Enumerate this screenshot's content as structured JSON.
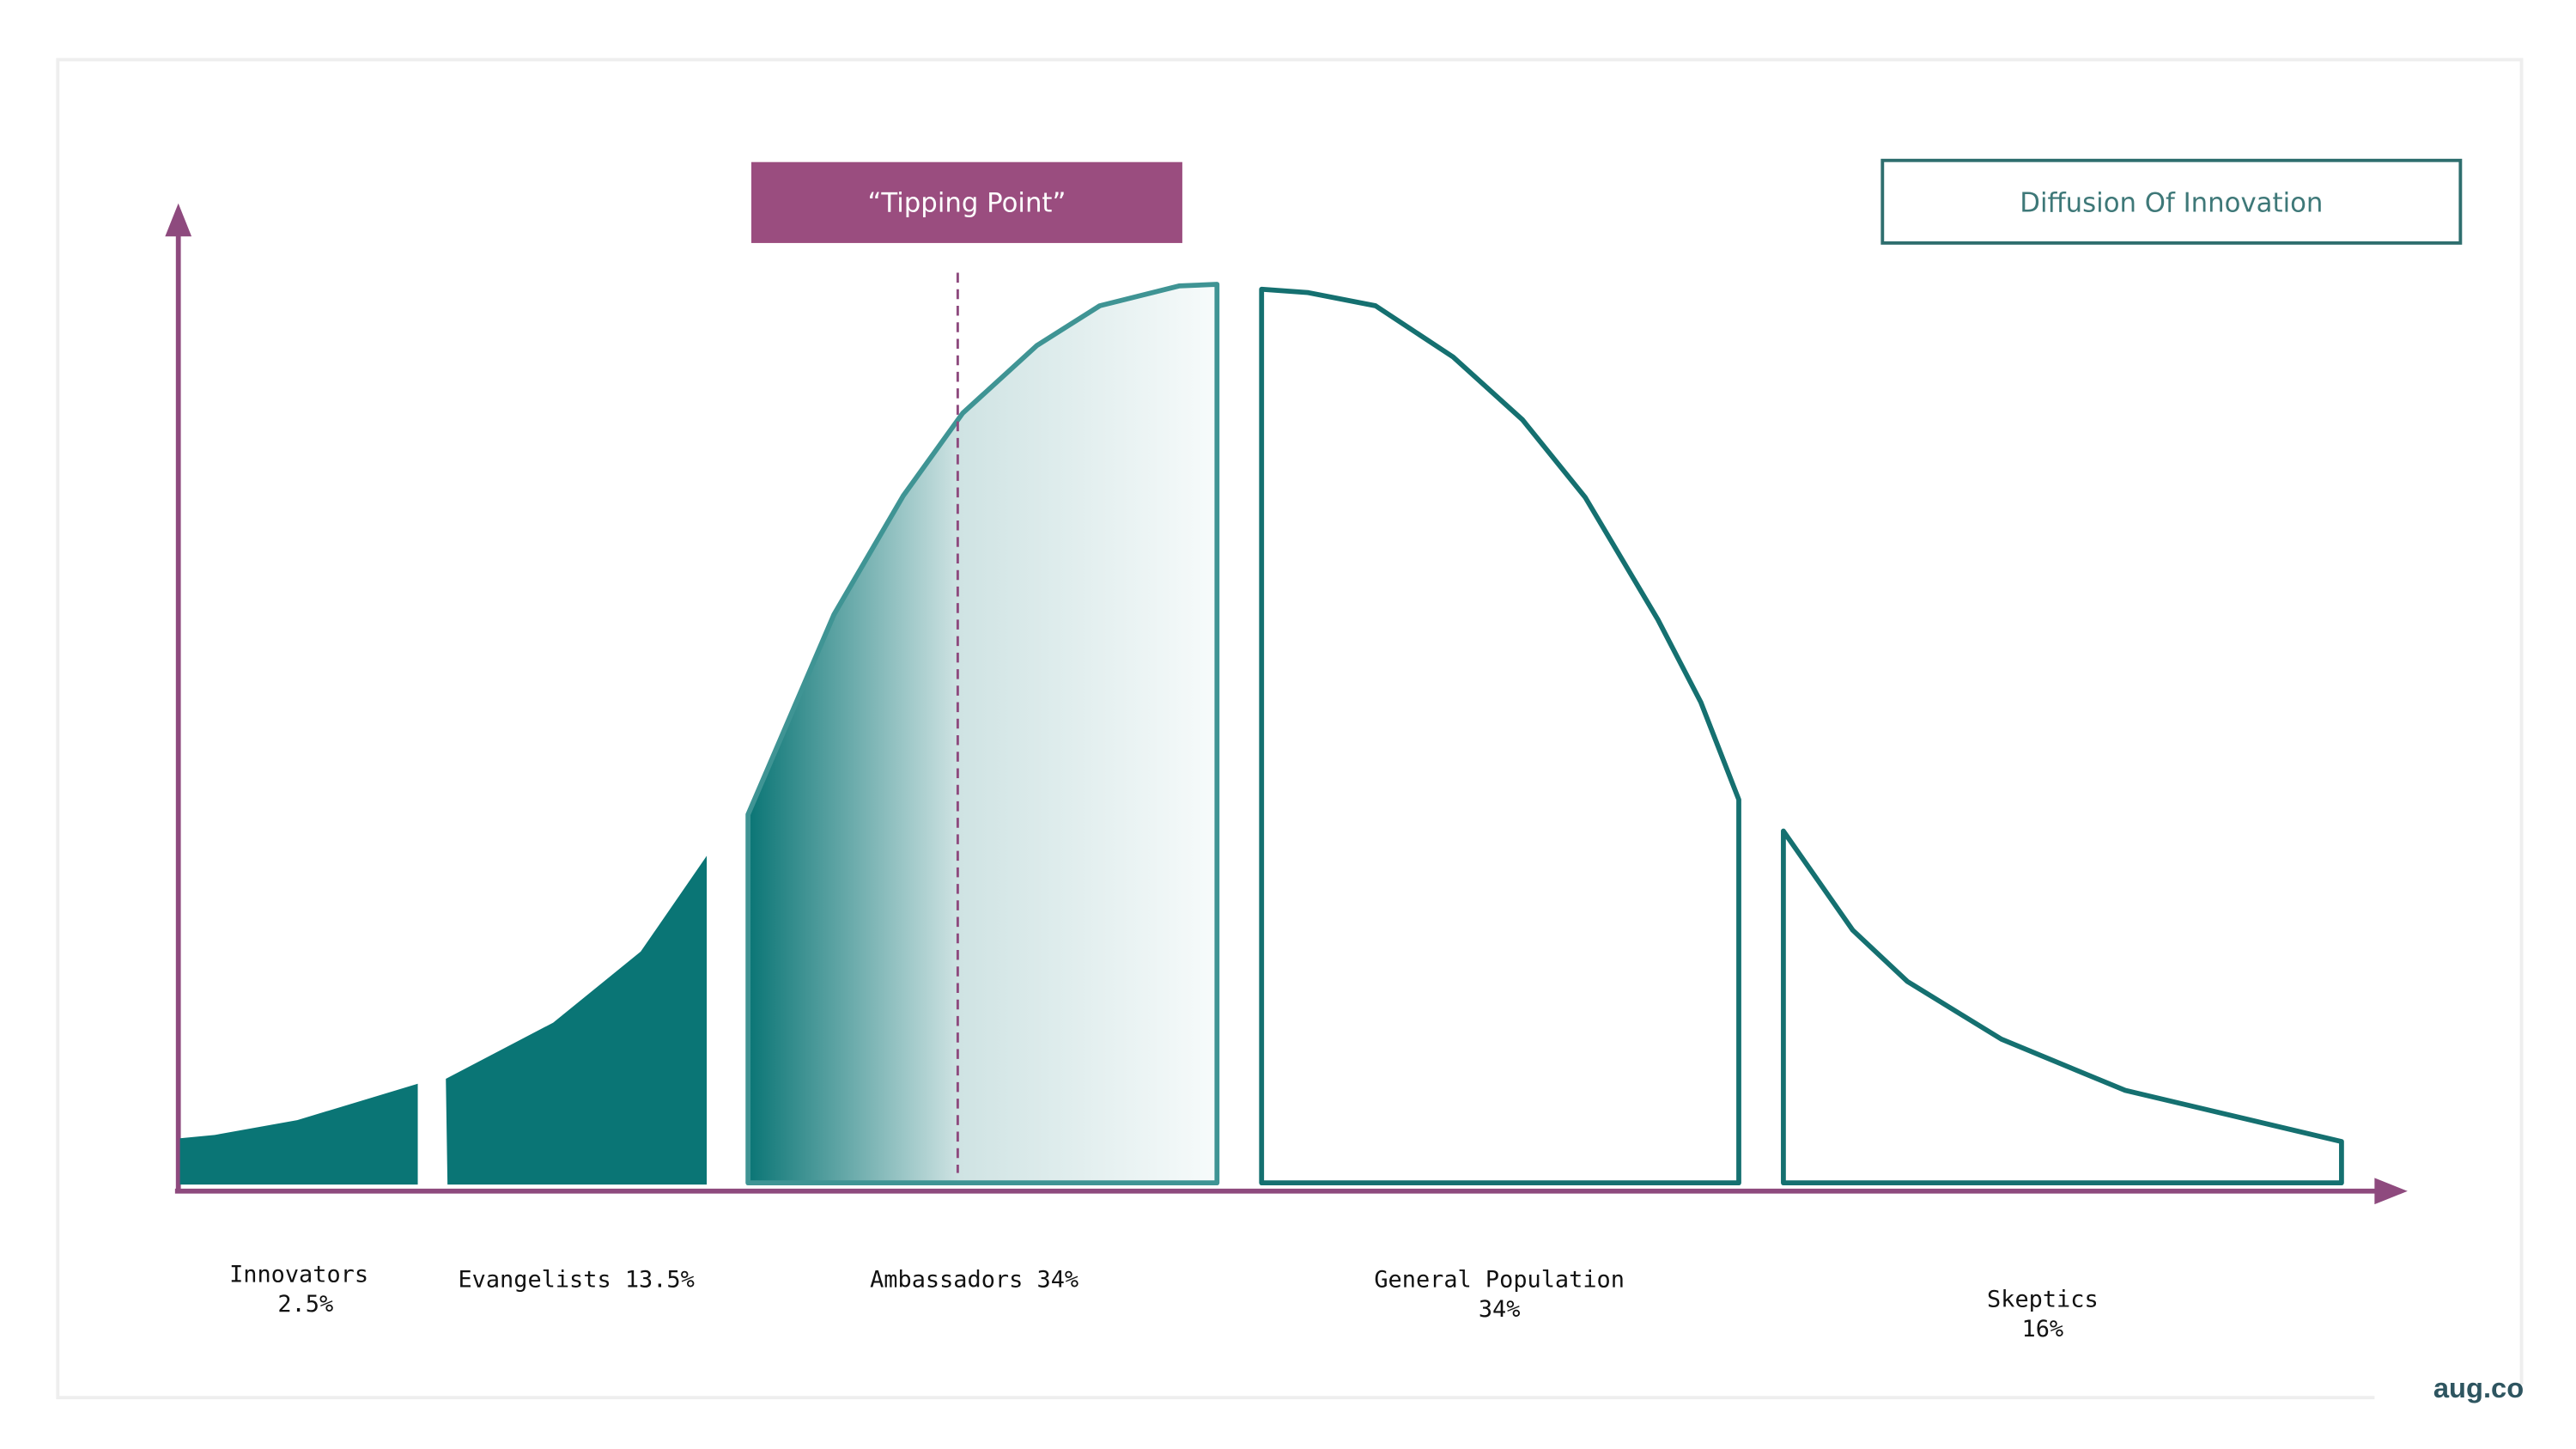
{
  "title_box": {
    "label": "Diffusion Of Innovation"
  },
  "tipping_point": {
    "label": "“Tipping Point”"
  },
  "segments": [
    {
      "name": "Innovators",
      "line1": "Innovators",
      "line2": "2.5%"
    },
    {
      "name": "Evangelists",
      "line1": "Evangelists 13.5%"
    },
    {
      "name": "Ambassadors",
      "line1": "Ambassadors 34%"
    },
    {
      "name": "General Population",
      "line1": "General Population",
      "line2": "34%"
    },
    {
      "name": "Skeptics",
      "line1": "Skeptics",
      "line2": "16%"
    }
  ],
  "brand": "aug.co",
  "colors": {
    "axis": "#8e4a7e",
    "teal": "#0a7575",
    "tipping": "#9a4d7f",
    "outline": "#157070"
  }
}
